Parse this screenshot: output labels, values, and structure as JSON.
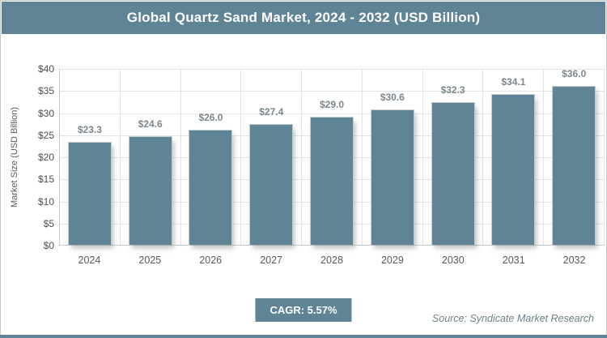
{
  "chart_data": {
    "type": "bar",
    "title": "Global Quartz Sand Market, 2024 - 2032 (USD Billion)",
    "categories": [
      "2024",
      "2025",
      "2026",
      "2027",
      "2028",
      "2029",
      "2030",
      "2031",
      "2032"
    ],
    "values": [
      23.3,
      24.6,
      26.0,
      27.4,
      29.0,
      30.6,
      32.3,
      34.1,
      36.0
    ],
    "value_labels": [
      "$23.3",
      "$24.6",
      "$26.0",
      "$27.4",
      "$29.0",
      "$30.6",
      "$32.3",
      "$34.1",
      "$36.0"
    ],
    "value_prefix": "$",
    "xlabel": "",
    "ylabel": "Market Size (USD Billion)",
    "ylim": [
      0,
      40
    ],
    "ytick_step": 5,
    "ytick_labels": [
      "$0",
      "$5",
      "$10",
      "$15",
      "$20",
      "$25",
      "$30",
      "$35",
      "$40"
    ],
    "grid": true,
    "gridlines": "horizontal-and-vertical",
    "legend": "none"
  },
  "footer": {
    "cagr_label": "CAGR: 5.57%",
    "source": "Source: Syndicate Market Research"
  },
  "colors": {
    "accent": "#5e8496",
    "bar_fill": "#5f8495",
    "bar_border": "#c5cdd1",
    "value_label_text": "#7b868d",
    "axis_text": "#565656",
    "gridline": "#e3e3e3",
    "axis_line": "#c3cacd",
    "source_text": "#6e7f88",
    "title_text": "#ffffff",
    "panel_border": "#c6c9ca"
  }
}
